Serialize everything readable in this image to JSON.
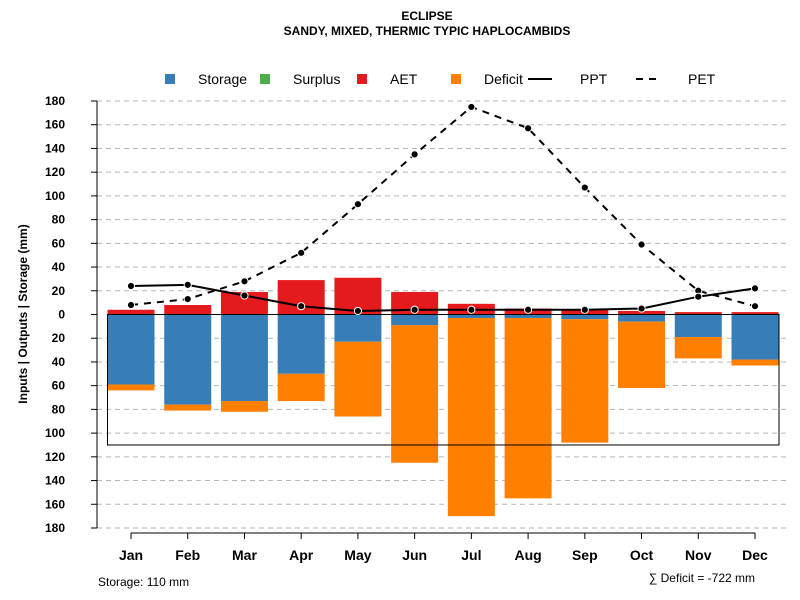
{
  "chart_data": {
    "type": "bar",
    "title": "ECLIPSE",
    "subtitle": "SANDY, MIXED, THERMIC TYPIC HAPLOCAMBIDS",
    "ylabel": "Inputs | Outputs | Storage    (mm)",
    "ylim": [
      -180,
      180
    ],
    "y_tick_values": [
      180,
      160,
      140,
      120,
      100,
      80,
      60,
      40,
      20,
      0,
      -20,
      -40,
      -60,
      -80,
      -100,
      -120,
      -140,
      -160,
      -180
    ],
    "y_tick_labels": [
      "180",
      "160",
      "140",
      "120",
      "100",
      "80",
      "60",
      "40",
      "20",
      "0",
      "20",
      "40",
      "60",
      "80",
      "100",
      "120",
      "140",
      "160",
      "180"
    ],
    "grid": true,
    "legend_position": "top",
    "categories": [
      "Jan",
      "Feb",
      "Mar",
      "Apr",
      "May",
      "Jun",
      "Jul",
      "Aug",
      "Sep",
      "Oct",
      "Nov",
      "Dec"
    ],
    "legend": [
      {
        "label": "Storage",
        "kind": "square",
        "color": "#377eb8"
      },
      {
        "label": "Surplus",
        "kind": "square",
        "color": "#4daf4a"
      },
      {
        "label": "AET",
        "kind": "square",
        "color": "#e41a1c"
      },
      {
        "label": "Deficit",
        "kind": "square",
        "color": "#ff7f00"
      },
      {
        "label": "PPT",
        "kind": "line-solid",
        "color": "#000000"
      },
      {
        "label": "PET",
        "kind": "line-dashed",
        "color": "#000000"
      }
    ],
    "series": [
      {
        "name": "AET",
        "color": "#e41a1c",
        "values": [
          4,
          8,
          19,
          29,
          31,
          19,
          9,
          5,
          4,
          3,
          2,
          2
        ]
      },
      {
        "name": "Storage",
        "color": "#377eb8",
        "values": [
          59,
          76,
          73,
          50,
          23,
          9,
          3,
          3,
          4,
          6,
          19,
          38
        ]
      },
      {
        "name": "Deficit",
        "color": "#ff7f00",
        "values": [
          5,
          5,
          9,
          23,
          63,
          116,
          167,
          152,
          104,
          56,
          18,
          5
        ]
      },
      {
        "name": "Surplus",
        "color": "#4daf4a",
        "values": [
          0,
          0,
          0,
          0,
          0,
          0,
          0,
          0,
          0,
          0,
          0,
          0
        ]
      },
      {
        "name": "PPT",
        "color": "#000000",
        "values": [
          24,
          25,
          16,
          7,
          3,
          4,
          4,
          4,
          4,
          5,
          15,
          22
        ]
      },
      {
        "name": "PET",
        "color": "#000000",
        "values": [
          8,
          13,
          28,
          52,
          93,
          135,
          175,
          157,
          107,
          59,
          20,
          7
        ]
      }
    ],
    "storage_capacity": 110,
    "annotations": {
      "storage_note": "Storage: 110 mm",
      "deficit_note": "∑ Deficit = -722 mm"
    }
  }
}
